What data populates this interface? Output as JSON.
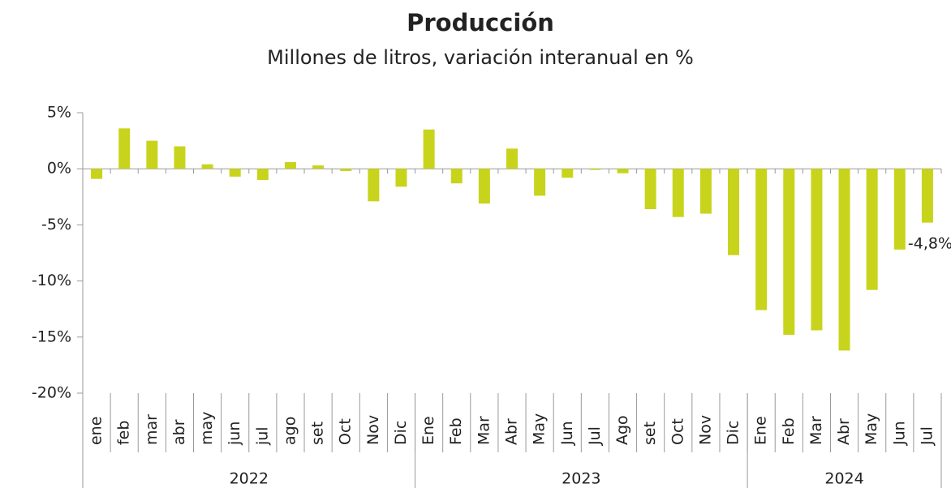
{
  "chart_data": {
    "type": "bar",
    "title": "Producción",
    "subtitle": "Millones de litros, variación interanual en %",
    "categories": [
      "ene",
      "feb",
      "mar",
      "abr",
      "may",
      "jun",
      "jul",
      "ago",
      "set",
      "Oct",
      "Nov",
      "Dic",
      "Ene",
      "Feb",
      "Mar",
      "Abr",
      "May",
      "Jun",
      "Jul",
      "Ago",
      "set",
      "Oct",
      "Nov",
      "Dic",
      "Ene",
      "Feb",
      "Mar",
      "Abr",
      "May",
      "Jun",
      "Jul"
    ],
    "values": [
      -0.9,
      3.6,
      2.5,
      2.0,
      0.4,
      -0.7,
      -1.0,
      0.6,
      0.3,
      -0.2,
      -2.9,
      -1.6,
      3.5,
      -1.3,
      -3.1,
      1.8,
      -2.4,
      -0.8,
      -0.1,
      -0.4,
      -3.6,
      -4.3,
      -4.0,
      -7.7,
      -12.6,
      -14.8,
      -14.4,
      -16.2,
      -10.8,
      -7.2,
      -4.8
    ],
    "value_labels": [
      null,
      null,
      null,
      null,
      null,
      null,
      null,
      null,
      null,
      null,
      null,
      null,
      null,
      null,
      null,
      null,
      null,
      null,
      null,
      null,
      null,
      null,
      null,
      null,
      null,
      null,
      null,
      null,
      null,
      null,
      "-4,8%"
    ],
    "groups": [
      {
        "label": "2022",
        "categories": 12
      },
      {
        "label": "2023",
        "categories": 12
      },
      {
        "label": "2024",
        "categories": 7
      }
    ],
    "color": "#c8d41c",
    "ylim": [
      -20,
      5
    ],
    "yticks": [
      {
        "value": 5,
        "label": "5%"
      },
      {
        "value": 0,
        "label": "0%"
      },
      {
        "value": -5,
        "label": "-5%"
      },
      {
        "value": -10,
        "label": "-10%"
      },
      {
        "value": -15,
        "label": "-15%"
      },
      {
        "value": -20,
        "label": "-20%"
      }
    ]
  }
}
